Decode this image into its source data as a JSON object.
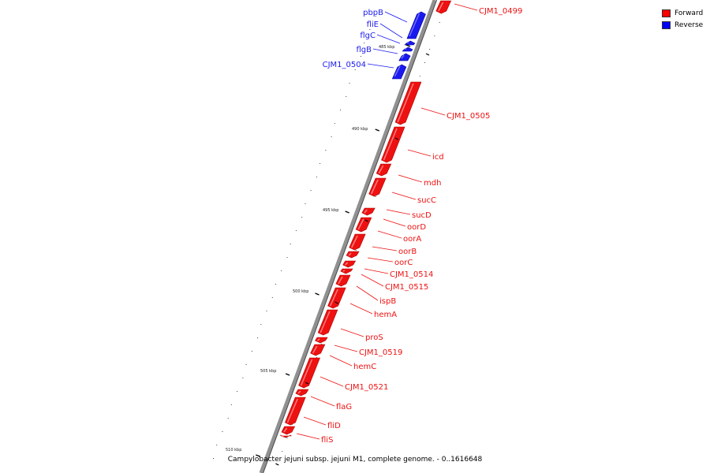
{
  "caption": "Campylobacter jejuni subsp. jejuni M1, complete genome. - 0..1616648",
  "legend": [
    {
      "label": "Forward",
      "color": "#ff0000",
      "icon": "red-square"
    },
    {
      "label": "Reverse",
      "color": "#0000ff",
      "icon": "blue-square"
    }
  ],
  "colors": {
    "forward": "#ee1111",
    "reverse": "#1a1aee",
    "backbone": "#909090"
  },
  "ticks": [
    {
      "label": "485 kbp"
    },
    {
      "label": "490 kbp"
    },
    {
      "label": "495 kbp"
    },
    {
      "label": "500 kbp"
    },
    {
      "label": "505 kbp"
    },
    {
      "label": "510 kbp"
    }
  ],
  "genes": [
    {
      "name": "CJM1_0499",
      "strand": "forward"
    },
    {
      "name": "pbpB",
      "strand": "reverse"
    },
    {
      "name": "fliE",
      "strand": "reverse"
    },
    {
      "name": "flgC",
      "strand": "reverse"
    },
    {
      "name": "flgB",
      "strand": "reverse"
    },
    {
      "name": "CJM1_0504",
      "strand": "reverse"
    },
    {
      "name": "CJM1_0505",
      "strand": "forward"
    },
    {
      "name": "icd",
      "strand": "forward"
    },
    {
      "name": "mdh",
      "strand": "forward"
    },
    {
      "name": "sucC",
      "strand": "forward"
    },
    {
      "name": "sucD",
      "strand": "forward"
    },
    {
      "name": "oorD",
      "strand": "forward"
    },
    {
      "name": "oorA",
      "strand": "forward"
    },
    {
      "name": "oorB",
      "strand": "forward"
    },
    {
      "name": "oorC",
      "strand": "forward"
    },
    {
      "name": "CJM1_0514",
      "strand": "forward"
    },
    {
      "name": "CJM1_0515",
      "strand": "forward"
    },
    {
      "name": "ispB",
      "strand": "forward"
    },
    {
      "name": "hemA",
      "strand": "forward"
    },
    {
      "name": "proS",
      "strand": "forward"
    },
    {
      "name": "CJM1_0519",
      "strand": "forward"
    },
    {
      "name": "hemC",
      "strand": "forward"
    },
    {
      "name": "CJM1_0521",
      "strand": "forward"
    },
    {
      "name": "flaG",
      "strand": "forward"
    },
    {
      "name": "fliD",
      "strand": "forward"
    },
    {
      "name": "fliS",
      "strand": "forward"
    }
  ]
}
